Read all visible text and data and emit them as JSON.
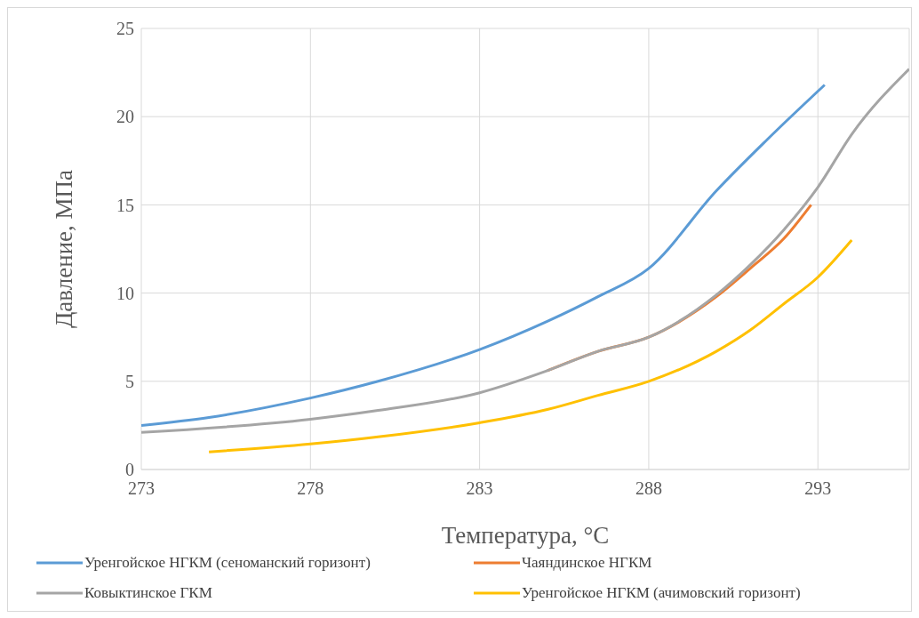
{
  "chart_data": {
    "type": "line",
    "xlabel": "Температура, °C",
    "ylabel": "Давление, МПа",
    "xlim": [
      273,
      295.7
    ],
    "xticks": [
      273,
      278,
      283,
      288,
      293
    ],
    "ylim": [
      0,
      25
    ],
    "yticks": [
      0,
      5,
      10,
      15,
      20,
      25
    ],
    "grid": true,
    "legend": "bottom",
    "series": [
      {
        "name": "Уренгойское НГКМ (сеноманский горизонт)",
        "color": "#5b9bd5",
        "x": [
          273,
          275,
          278,
          280,
          283,
          285,
          286.5,
          288,
          290,
          291.5,
          293.2
        ],
        "values": [
          2.5,
          2.95,
          4.05,
          5.0,
          6.8,
          8.4,
          9.8,
          11.4,
          15.8,
          18.7,
          21.8
        ]
      },
      {
        "name": "Чаяндинское НГКМ",
        "color": "#ed7d31",
        "x": [
          285,
          286.5,
          288,
          290,
          291,
          292,
          292.8
        ],
        "values": [
          5.6,
          6.7,
          7.5,
          9.8,
          11.4,
          13.1,
          15.0
        ]
      },
      {
        "name": "Ковыктинское ГКМ",
        "color": "#a5a5a5",
        "x": [
          273,
          278,
          280,
          283,
          285,
          286.5,
          288,
          290,
          291,
          292,
          293,
          294,
          295.7
        ],
        "values": [
          2.1,
          2.85,
          3.35,
          4.35,
          5.6,
          6.7,
          7.5,
          9.9,
          11.6,
          13.6,
          16.0,
          19.0,
          22.7
        ]
      },
      {
        "name": "Уренгойское НГКМ (ачимовский горизонт)",
        "color": "#ffc000",
        "x": [
          275,
          278,
          280,
          283,
          285,
          286.5,
          288,
          290,
          291,
          292,
          293,
          294
        ],
        "values": [
          1.0,
          1.45,
          1.85,
          2.65,
          3.4,
          4.2,
          5.0,
          6.7,
          7.9,
          9.4,
          10.9,
          13.0
        ]
      }
    ]
  }
}
